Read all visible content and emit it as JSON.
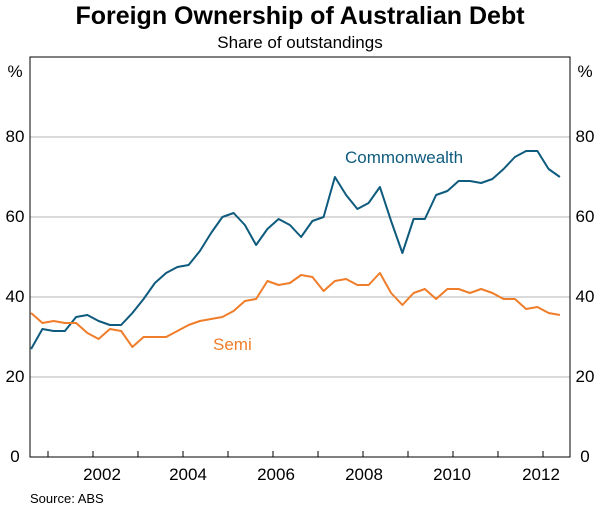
{
  "chart_data": {
    "type": "line",
    "title": "Foreign Ownership of Australian Debt",
    "subtitle": "Share of outstandings",
    "source": "Source: ABS",
    "y_unit_left": "%",
    "y_unit_right": "%",
    "ylim": [
      0,
      100
    ],
    "y_ticks": [
      "0",
      "20",
      "40",
      "60",
      "80"
    ],
    "xlim": [
      2000.6,
      2012.6
    ],
    "x_ticks": [
      "2002",
      "2004",
      "2006",
      "2008",
      "2010",
      "2012"
    ],
    "grid": true,
    "x": [
      2000.625,
      2000.875,
      2001.125,
      2001.375,
      2001.625,
      2001.875,
      2002.125,
      2002.375,
      2002.625,
      2002.875,
      2003.125,
      2003.375,
      2003.625,
      2003.875,
      2004.125,
      2004.375,
      2004.625,
      2004.875,
      2005.125,
      2005.375,
      2005.625,
      2005.875,
      2006.125,
      2006.375,
      2006.625,
      2006.875,
      2007.125,
      2007.375,
      2007.625,
      2007.875,
      2008.125,
      2008.375,
      2008.625,
      2008.875,
      2009.125,
      2009.375,
      2009.625,
      2009.875,
      2010.125,
      2010.375,
      2010.625,
      2010.875,
      2011.125,
      2011.375,
      2011.625,
      2011.875,
      2012.125,
      2012.375
    ],
    "series": [
      {
        "name": "Commonwealth",
        "color": "#0e5b7e",
        "values": [
          27,
          32,
          31.5,
          31.5,
          35,
          35.5,
          34,
          33,
          33,
          36,
          39.5,
          43.5,
          46,
          47.5,
          48,
          51.5,
          56,
          60,
          61,
          58,
          53,
          57,
          59.5,
          58,
          55,
          59,
          60,
          70,
          65.5,
          62,
          63.5,
          67.5,
          59,
          51,
          59.5,
          59.5,
          65.5,
          66.5,
          69,
          69,
          68.5,
          69.5,
          72,
          75,
          76.5,
          76.5,
          72,
          70
        ]
      },
      {
        "name": "Semi",
        "color": "#ef7d2a",
        "values": [
          36,
          33.5,
          34,
          33.5,
          33.5,
          31,
          29.5,
          32,
          31.5,
          27.5,
          30,
          30,
          30,
          31.5,
          33,
          34,
          34.5,
          35,
          36.5,
          39,
          39.5,
          44,
          43,
          43.5,
          45.5,
          45,
          41.5,
          44,
          44.5,
          43,
          43,
          46,
          41,
          38,
          41,
          42,
          39.5,
          42,
          42,
          41,
          42,
          41,
          39.5,
          39.5,
          37,
          37.5,
          36,
          35.5
        ]
      }
    ],
    "series_labels": [
      "Commonwealth",
      "Semi"
    ]
  }
}
